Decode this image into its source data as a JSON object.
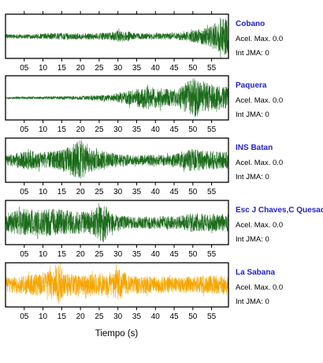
{
  "chart_data": {
    "type": "line",
    "xlabel": "Tiempo (s)",
    "xlim": [
      0,
      59.5
    ],
    "xticks": [
      5,
      10,
      15,
      20,
      25,
      30,
      35,
      40,
      45,
      50,
      55
    ],
    "xtick_labels": [
      "05",
      "10",
      "15",
      "20",
      "25",
      "30",
      "35",
      "40",
      "45",
      "50",
      "55"
    ],
    "panels": [
      {
        "station": "Cobano",
        "accel_label": "Acel. Max. 0.0",
        "jma_label": "Int JMA: 0",
        "color": "#1a6b1a",
        "envelope": [
          [
            0,
            0.1
          ],
          [
            8,
            0.11
          ],
          [
            12,
            0.16
          ],
          [
            20,
            0.14
          ],
          [
            28,
            0.17
          ],
          [
            30,
            0.28
          ],
          [
            35,
            0.16
          ],
          [
            42,
            0.14
          ],
          [
            48,
            0.2
          ],
          [
            52,
            0.35
          ],
          [
            55,
            0.55
          ],
          [
            57,
            0.8
          ],
          [
            59.5,
            0.95
          ]
        ]
      },
      {
        "station": "Paquera",
        "accel_label": "Acel. Max. 0.0",
        "jma_label": "Int JMA: 0",
        "color": "#1a6b1a",
        "envelope": [
          [
            0,
            0.05
          ],
          [
            10,
            0.07
          ],
          [
            20,
            0.09
          ],
          [
            28,
            0.15
          ],
          [
            32,
            0.3
          ],
          [
            38,
            0.55
          ],
          [
            42,
            0.45
          ],
          [
            46,
            0.4
          ],
          [
            48,
            0.75
          ],
          [
            50,
            0.95
          ],
          [
            53,
            0.7
          ],
          [
            56,
            0.6
          ],
          [
            59.5,
            0.5
          ]
        ]
      },
      {
        "station": "INS Batan",
        "accel_label": "Acel. Max. 0.0",
        "jma_label": "Int JMA: 0",
        "color": "#1a6b1a",
        "envelope": [
          [
            0,
            0.25
          ],
          [
            6,
            0.45
          ],
          [
            10,
            0.4
          ],
          [
            14,
            0.45
          ],
          [
            18,
            0.75
          ],
          [
            20,
            1.0
          ],
          [
            22,
            0.6
          ],
          [
            26,
            0.45
          ],
          [
            30,
            0.3
          ],
          [
            35,
            0.22
          ],
          [
            38,
            0.28
          ],
          [
            42,
            0.25
          ],
          [
            45,
            0.3
          ],
          [
            50,
            0.55
          ],
          [
            53,
            0.45
          ],
          [
            59.5,
            0.42
          ]
        ]
      },
      {
        "station": "Esc J Chaves,C Quesada",
        "accel_label": "Acel. Max. 0.0",
        "jma_label": "Int JMA: 0",
        "color": "#1a6b1a",
        "envelope": [
          [
            0,
            0.45
          ],
          [
            5,
            0.65
          ],
          [
            10,
            0.6
          ],
          [
            13,
            0.7
          ],
          [
            18,
            0.55
          ],
          [
            22,
            0.5
          ],
          [
            25,
            0.8
          ],
          [
            26,
            1.0
          ],
          [
            28,
            0.45
          ],
          [
            32,
            0.3
          ],
          [
            38,
            0.3
          ],
          [
            42,
            0.32
          ],
          [
            46,
            0.3
          ],
          [
            50,
            0.45
          ],
          [
            55,
            0.4
          ],
          [
            59.5,
            0.42
          ]
        ]
      },
      {
        "station": "La Sabana",
        "accel_label": "Acel. Max. 0.0",
        "jma_label": "Int JMA: 0",
        "color": "#f7a500",
        "envelope": [
          [
            0,
            0.35
          ],
          [
            5,
            0.45
          ],
          [
            10,
            0.55
          ],
          [
            13,
            0.75
          ],
          [
            14,
            0.95
          ],
          [
            16,
            0.55
          ],
          [
            20,
            0.45
          ],
          [
            25,
            0.55
          ],
          [
            28,
            0.5
          ],
          [
            30,
            0.8
          ],
          [
            33,
            0.45
          ],
          [
            40,
            0.4
          ],
          [
            45,
            0.38
          ],
          [
            50,
            0.4
          ],
          [
            55,
            0.45
          ],
          [
            59.5,
            0.42
          ]
        ]
      }
    ]
  }
}
